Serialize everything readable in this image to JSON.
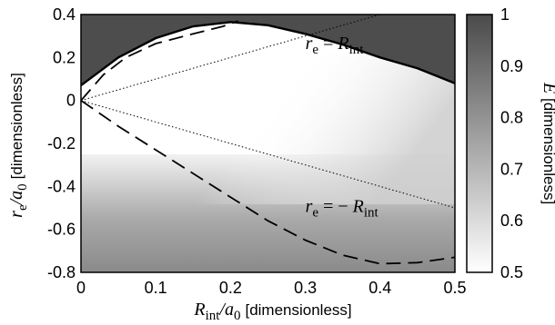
{
  "chart_data": {
    "type": "heatmap",
    "x": {
      "symbol": "R",
      "symbol_sub": "int",
      "denom": "/a",
      "denom_sub": "0",
      "unit_label": "[dimensionless]",
      "range": [
        0,
        0.5
      ],
      "ticks": [
        "0",
        "0.1",
        "0.2",
        "0.3",
        "0.4",
        "0.5"
      ]
    },
    "y": {
      "symbol": "r",
      "symbol_sub": "e",
      "denom": "/a",
      "denom_sub": "0",
      "unit_label": "[dimensionless]",
      "range": [
        -0.8,
        0.4
      ],
      "ticks": [
        "0.4",
        "0.2",
        "0",
        "-0.2",
        "-0.4",
        "-0.6",
        "-0.8"
      ]
    },
    "colorbar": {
      "symbol": "Ē",
      "unit_label": "[dimensionless]",
      "range": [
        0.5,
        1
      ],
      "ticks": [
        "1",
        "0.9",
        "0.8",
        "0.7",
        "0.6",
        "0.5"
      ],
      "low_color": "#ffffff",
      "high_color": "#4a4a4a"
    },
    "boundary_curve": {
      "style": "solid",
      "points": [
        [
          0,
          0.07
        ],
        [
          0.05,
          0.2
        ],
        [
          0.1,
          0.29
        ],
        [
          0.15,
          0.345
        ],
        [
          0.2,
          0.365
        ],
        [
          0.25,
          0.35
        ],
        [
          0.3,
          0.31
        ],
        [
          0.35,
          0.26
        ],
        [
          0.4,
          0.2
        ],
        [
          0.45,
          0.15
        ],
        [
          0.5,
          0.08
        ]
      ]
    },
    "dashed_curves": [
      {
        "style": "dashed",
        "points": [
          [
            0,
            0.0
          ],
          [
            0.03,
            0.12
          ],
          [
            0.06,
            0.2
          ],
          [
            0.1,
            0.265
          ],
          [
            0.15,
            0.31
          ],
          [
            0.19,
            0.345
          ],
          [
            0.21,
            0.37
          ]
        ]
      },
      {
        "style": "dashed",
        "points": [
          [
            0,
            0.0
          ],
          [
            0.05,
            -0.12
          ],
          [
            0.1,
            -0.23
          ],
          [
            0.15,
            -0.34
          ],
          [
            0.2,
            -0.45
          ],
          [
            0.25,
            -0.56
          ],
          [
            0.3,
            -0.65
          ],
          [
            0.35,
            -0.72
          ],
          [
            0.4,
            -0.76
          ],
          [
            0.45,
            -0.755
          ],
          [
            0.5,
            -0.73
          ]
        ]
      }
    ],
    "dotted_lines": [
      {
        "style": "dotted",
        "points": [
          [
            0,
            0.0
          ],
          [
            0.5,
            0.5
          ]
        ]
      },
      {
        "style": "dotted",
        "points": [
          [
            0,
            0.0
          ],
          [
            0.5,
            -0.5
          ]
        ]
      }
    ],
    "annotations": [
      {
        "lhs": "r",
        "lhs_sub": "e",
        "rel": " = ",
        "rhs": "R",
        "rhs_sub": "int",
        "at": [
          0.3,
          0.24
        ]
      },
      {
        "lhs": "r",
        "lhs_sub": "e",
        "rel": " = − ",
        "rhs": "R",
        "rhs_sub": "int",
        "at": [
          0.3,
          -0.52
        ]
      }
    ]
  }
}
